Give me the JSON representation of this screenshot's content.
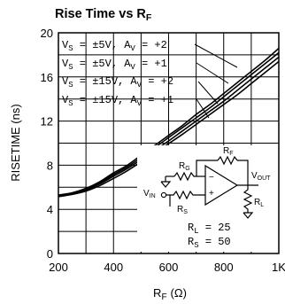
{
  "chart_data": {
    "type": "line",
    "title": "Rise Time vs R",
    "title_sub": "F",
    "ylabel": "RISETIME (ns)",
    "xlabel": {
      "main": "R",
      "sub": "F",
      "unit": "(Ω)"
    },
    "xlim": [
      200,
      1000
    ],
    "ylim": [
      0,
      20
    ],
    "x_ticks": [
      200,
      400,
      600,
      800,
      1000
    ],
    "x_tick_labels": [
      "200",
      "400",
      "600",
      "800",
      "1K"
    ],
    "y_ticks": [
      0,
      4,
      8,
      12,
      16,
      20
    ],
    "y_tick_labels": [
      "0",
      "4",
      "8",
      "12",
      "16",
      "20"
    ],
    "grid": true,
    "series": [
      {
        "name": "VS = ±5V, AV = +2",
        "label": {
          "v_sub": "S",
          "mid": " = ±5V, A",
          "a_sub": "V",
          "end": " = +2"
        },
        "x": [
          200,
          250,
          300,
          350,
          400,
          450,
          500,
          550,
          600,
          650,
          700,
          750,
          800,
          850,
          900,
          950,
          1000
        ],
        "y": [
          5.3,
          5.5,
          5.9,
          6.5,
          7.3,
          8.0,
          8.9,
          9.8,
          10.7,
          11.6,
          12.6,
          13.5,
          14.5,
          15.5,
          16.5,
          17.5,
          18.6
        ]
      },
      {
        "name": "VS = ±5V, AV = +1",
        "label": {
          "v_sub": "S",
          "mid": " = ±5V, A",
          "a_sub": "V",
          "end": " = +1"
        },
        "x": [
          200,
          250,
          300,
          350,
          400,
          450,
          500,
          550,
          600,
          650,
          700,
          750,
          800,
          850,
          900,
          950,
          1000
        ],
        "y": [
          5.25,
          5.45,
          5.85,
          6.4,
          7.15,
          7.85,
          8.7,
          9.6,
          10.5,
          11.4,
          12.3,
          13.2,
          14.2,
          15.2,
          16.2,
          17.2,
          18.2
        ]
      },
      {
        "name": "VS = ±15V, AV = +2",
        "label": {
          "v_sub": "S",
          "mid": " = ±15V, A",
          "a_sub": "V",
          "end": " = +2"
        },
        "x": [
          200,
          250,
          300,
          350,
          400,
          450,
          500,
          550,
          600,
          650,
          700,
          750,
          800,
          850,
          900,
          950,
          1000
        ],
        "y": [
          5.2,
          5.4,
          5.75,
          6.3,
          7.0,
          7.7,
          8.5,
          9.35,
          10.2,
          11.1,
          12.0,
          12.9,
          13.8,
          14.8,
          15.8,
          16.8,
          17.8
        ]
      },
      {
        "name": "VS = ±15V, AV = +1",
        "label": {
          "v_sub": "S",
          "mid": " = ±15V, A",
          "a_sub": "V",
          "end": " = +1"
        },
        "x": [
          200,
          250,
          300,
          350,
          400,
          450,
          500,
          550,
          600,
          650,
          700,
          750,
          800,
          850,
          900,
          950,
          1000
        ],
        "y": [
          5.15,
          5.35,
          5.65,
          6.15,
          6.8,
          7.5,
          8.3,
          9.1,
          9.95,
          10.8,
          11.7,
          12.6,
          13.5,
          14.4,
          15.4,
          16.4,
          17.4
        ]
      }
    ],
    "circuit": {
      "rg": "R",
      "rg_sub": "G",
      "rf": "R",
      "rf_sub": "F",
      "rs": "R",
      "rs_sub": "S",
      "rl": "R",
      "rl_sub": "L",
      "vin": "V",
      "vin_sub": "IN",
      "vout": "V",
      "vout_sub": "OUT",
      "minus": "−",
      "plus": "+",
      "note_rl": {
        "main": "R",
        "sub": "L",
        "rest": " = 25"
      },
      "note_rs": {
        "main": "R",
        "sub": "S",
        "rest": " = 50"
      }
    }
  }
}
